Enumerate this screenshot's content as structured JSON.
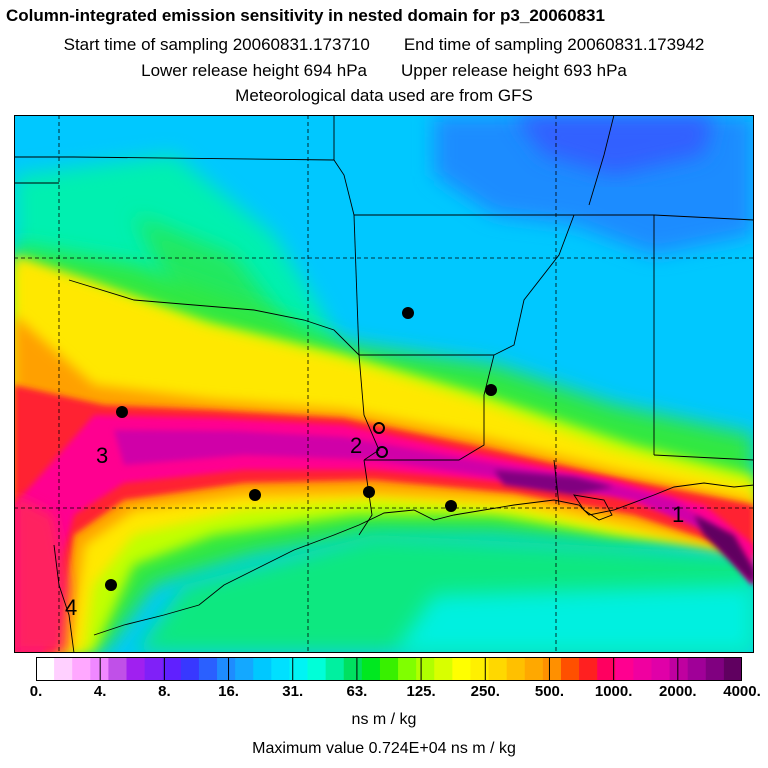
{
  "header": {
    "title": "Column-integrated emission sensitivity in nested domain for p3_20060831",
    "start_label": "Start time of sampling 20060831.173710",
    "end_label": "End time of sampling 20060831.173942",
    "lower_label": "Lower release height  694 hPa",
    "upper_label": "Upper release height  693 hPa",
    "met_label": "Meteorological data used are from GFS"
  },
  "map": {
    "site_labels": [
      {
        "text": "1"
      },
      {
        "text": "2"
      },
      {
        "text": "3"
      },
      {
        "text": "4"
      }
    ]
  },
  "colorbar": {
    "ticks": [
      "0.",
      "4.",
      "8.",
      "16.",
      "31.",
      "63.",
      "125.",
      "250.",
      "500.",
      "1000.",
      "2000.",
      "4000."
    ],
    "colors": [
      "#ffffff",
      "#ffd0ff",
      "#ffa8ff",
      "#f088ff",
      "#c050e8",
      "#a020f0",
      "#8020f8",
      "#6020ff",
      "#3838ff",
      "#2a60ff",
      "#1e8cff",
      "#14a8ff",
      "#00c8ff",
      "#00e0ff",
      "#00f4f4",
      "#00ffd8",
      "#00f0a0",
      "#00e060",
      "#00e820",
      "#38f000",
      "#80ff00",
      "#b0ff00",
      "#d8ff00",
      "#ffff00",
      "#fff000",
      "#ffd800",
      "#ffc000",
      "#ffa800",
      "#ff9000",
      "#ff5000",
      "#ff2020",
      "#ff0060",
      "#ff0090",
      "#f000a0",
      "#e000a8",
      "#c000a0",
      "#a00098",
      "#800080",
      "#600060"
    ],
    "units": "ns m / kg"
  },
  "footer": {
    "max_value": "Maximum value  0.724E+04 ns m / kg"
  }
}
